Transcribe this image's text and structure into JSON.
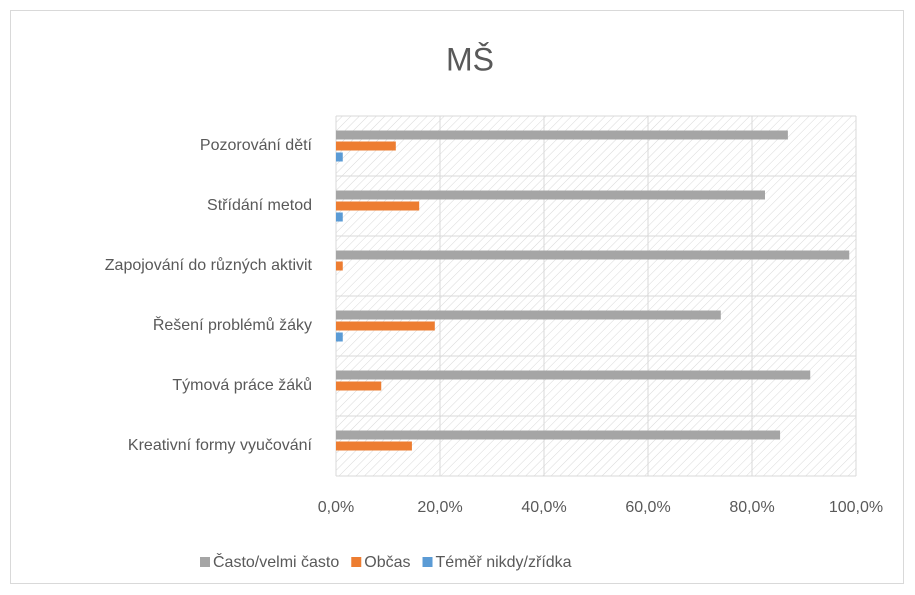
{
  "chart_data": {
    "type": "bar",
    "orientation": "horizontal",
    "title": "MŠ",
    "categories": [
      "Pozorování dětí",
      "Střídání metod",
      "Zapojování do různých aktivit",
      "Řešení problémů žáky",
      "Týmová práce žáků",
      "Kreativní formy vyučování"
    ],
    "series": [
      {
        "name": "Často/velmi často",
        "color": "#a5a5a5",
        "values": [
          86.9,
          82.5,
          98.7,
          74.0,
          91.2,
          85.4
        ]
      },
      {
        "name": "Občas",
        "color": "#ed7d31",
        "values": [
          11.5,
          16.0,
          1.3,
          19.0,
          8.7,
          14.6
        ]
      },
      {
        "name": "Téměř nikdy/zřídka",
        "color": "#5b9bd5",
        "values": [
          1.3,
          1.3,
          0,
          1.3,
          0,
          0
        ]
      }
    ],
    "xlim": [
      0,
      100
    ],
    "xticks": [
      {
        "value": 0,
        "label": "0,0%"
      },
      {
        "value": 20,
        "label": "20,0%"
      },
      {
        "value": 40,
        "label": "40,0%"
      },
      {
        "value": 60,
        "label": "60,0%"
      },
      {
        "value": 80,
        "label": "80,0%"
      },
      {
        "value": 100,
        "label": "100,0%"
      }
    ],
    "grid": true,
    "legend": "bottom"
  }
}
